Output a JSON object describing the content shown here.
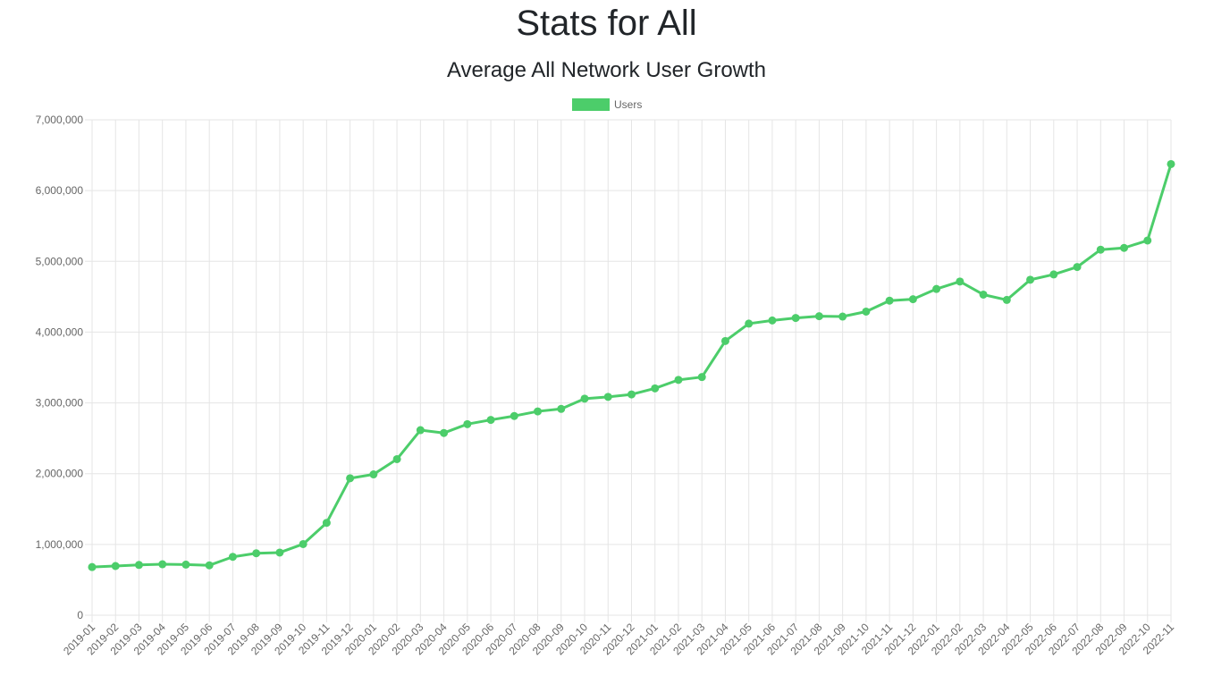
{
  "page": {
    "title": "Stats for All"
  },
  "chart_data": {
    "type": "line",
    "title": "Average All Network User Growth",
    "xlabel": "",
    "ylabel": "",
    "ylim": [
      0,
      7000000
    ],
    "yticks": [
      "0",
      "1,000,000",
      "2,000,000",
      "3,000,000",
      "4,000,000",
      "5,000,000",
      "6,000,000",
      "7,000,000"
    ],
    "grid": true,
    "legend_position": "top",
    "line_color": "#4ccd6a",
    "grid_color": "#e5e5e5",
    "categories": [
      "2019-01",
      "2019-02",
      "2019-03",
      "2019-04",
      "2019-05",
      "2019-06",
      "2019-07",
      "2019-08",
      "2019-09",
      "2019-10",
      "2019-11",
      "2019-12",
      "2020-01",
      "2020-02",
      "2020-03",
      "2020-04",
      "2020-05",
      "2020-06",
      "2020-07",
      "2020-08",
      "2020-09",
      "2020-10",
      "2020-11",
      "2020-12",
      "2021-01",
      "2021-02",
      "2021-03",
      "2021-04",
      "2021-05",
      "2021-06",
      "2021-07",
      "2021-08",
      "2021-09",
      "2021-10",
      "2021-11",
      "2021-12",
      "2022-01",
      "2022-02",
      "2022-03",
      "2022-04",
      "2022-05",
      "2022-06",
      "2022-07",
      "2022-08",
      "2022-09",
      "2022-10",
      "2022-11"
    ],
    "series": [
      {
        "name": "Users",
        "values": [
          680000,
          695000,
          710000,
          720000,
          715000,
          705000,
          825000,
          875000,
          885000,
          1005000,
          1305000,
          1935000,
          1990000,
          2205000,
          2615000,
          2575000,
          2700000,
          2760000,
          2815000,
          2880000,
          2915000,
          3060000,
          3085000,
          3120000,
          3205000,
          3325000,
          3365000,
          3875000,
          4120000,
          4165000,
          4200000,
          4225000,
          4220000,
          4290000,
          4445000,
          4465000,
          4610000,
          4715000,
          4530000,
          4455000,
          4740000,
          4815000,
          4920000,
          5165000,
          5190000,
          5295000,
          6375000
        ]
      }
    ]
  }
}
